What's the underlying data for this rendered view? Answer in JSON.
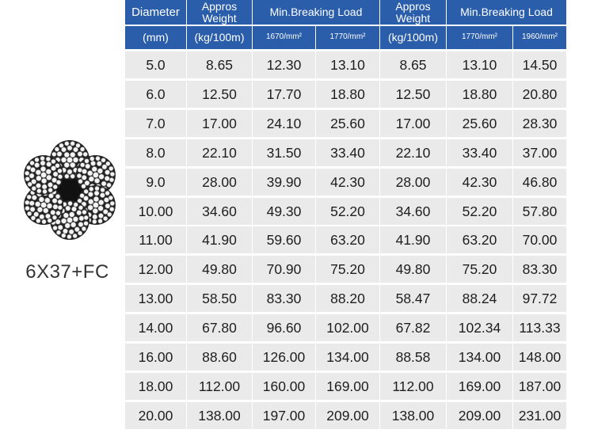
{
  "product_label": "6X37+FC",
  "headers": {
    "diameter": "Diameter",
    "diameter_unit": "(mm)",
    "weight_a": "Appros Weight",
    "weight_a_unit": "(kg/100m)",
    "load_a": "Min.Breaking Load",
    "load_a_g1": "1670/mm²",
    "load_a_g2": "1770/mm²",
    "weight_b": "Appros Weight",
    "weight_b_unit": "(kg/100m)",
    "load_b": "Min.Breaking Load",
    "load_b_g1": "1770/mm²",
    "load_b_g2": "1960/mm²"
  },
  "rows": [
    [
      "5.0",
      "8.65",
      "12.30",
      "13.10",
      "8.65",
      "13.10",
      "14.50"
    ],
    [
      "6.0",
      "12.50",
      "17.70",
      "18.80",
      "12.50",
      "18.80",
      "20.80"
    ],
    [
      "7.0",
      "17.00",
      "24.10",
      "25.60",
      "17.00",
      "25.60",
      "28.30"
    ],
    [
      "8.0",
      "22.10",
      "31.50",
      "33.40",
      "22.10",
      "33.40",
      "37.00"
    ],
    [
      "9.0",
      "28.00",
      "39.90",
      "42.30",
      "28.00",
      "42.30",
      "46.80"
    ],
    [
      "10.00",
      "34.60",
      "49.30",
      "52.20",
      "34.60",
      "52.20",
      "57.80"
    ],
    [
      "11.00",
      "41.90",
      "59.60",
      "63.20",
      "41.90",
      "63.20",
      "70.00"
    ],
    [
      "12.00",
      "49.80",
      "70.90",
      "75.20",
      "49.80",
      "75.20",
      "83.30"
    ],
    [
      "13.00",
      "58.50",
      "83.30",
      "88.20",
      "58.47",
      "88.24",
      "97.72"
    ],
    [
      "14.00",
      "67.80",
      "96.60",
      "102.00",
      "67.82",
      "102.34",
      "113.33"
    ],
    [
      "16.00",
      "88.60",
      "126.00",
      "134.00",
      "88.58",
      "134.00",
      "148.00"
    ],
    [
      "18.00",
      "112.00",
      "160.00",
      "169.00",
      "112.00",
      "169.00",
      "187.00"
    ],
    [
      "20.00",
      "138.00",
      "197.00",
      "209.00",
      "138.00",
      "209.00",
      "231.00"
    ]
  ],
  "colors": {
    "header_bg": "#2a5daa",
    "body_bg": "#eaeaea"
  }
}
